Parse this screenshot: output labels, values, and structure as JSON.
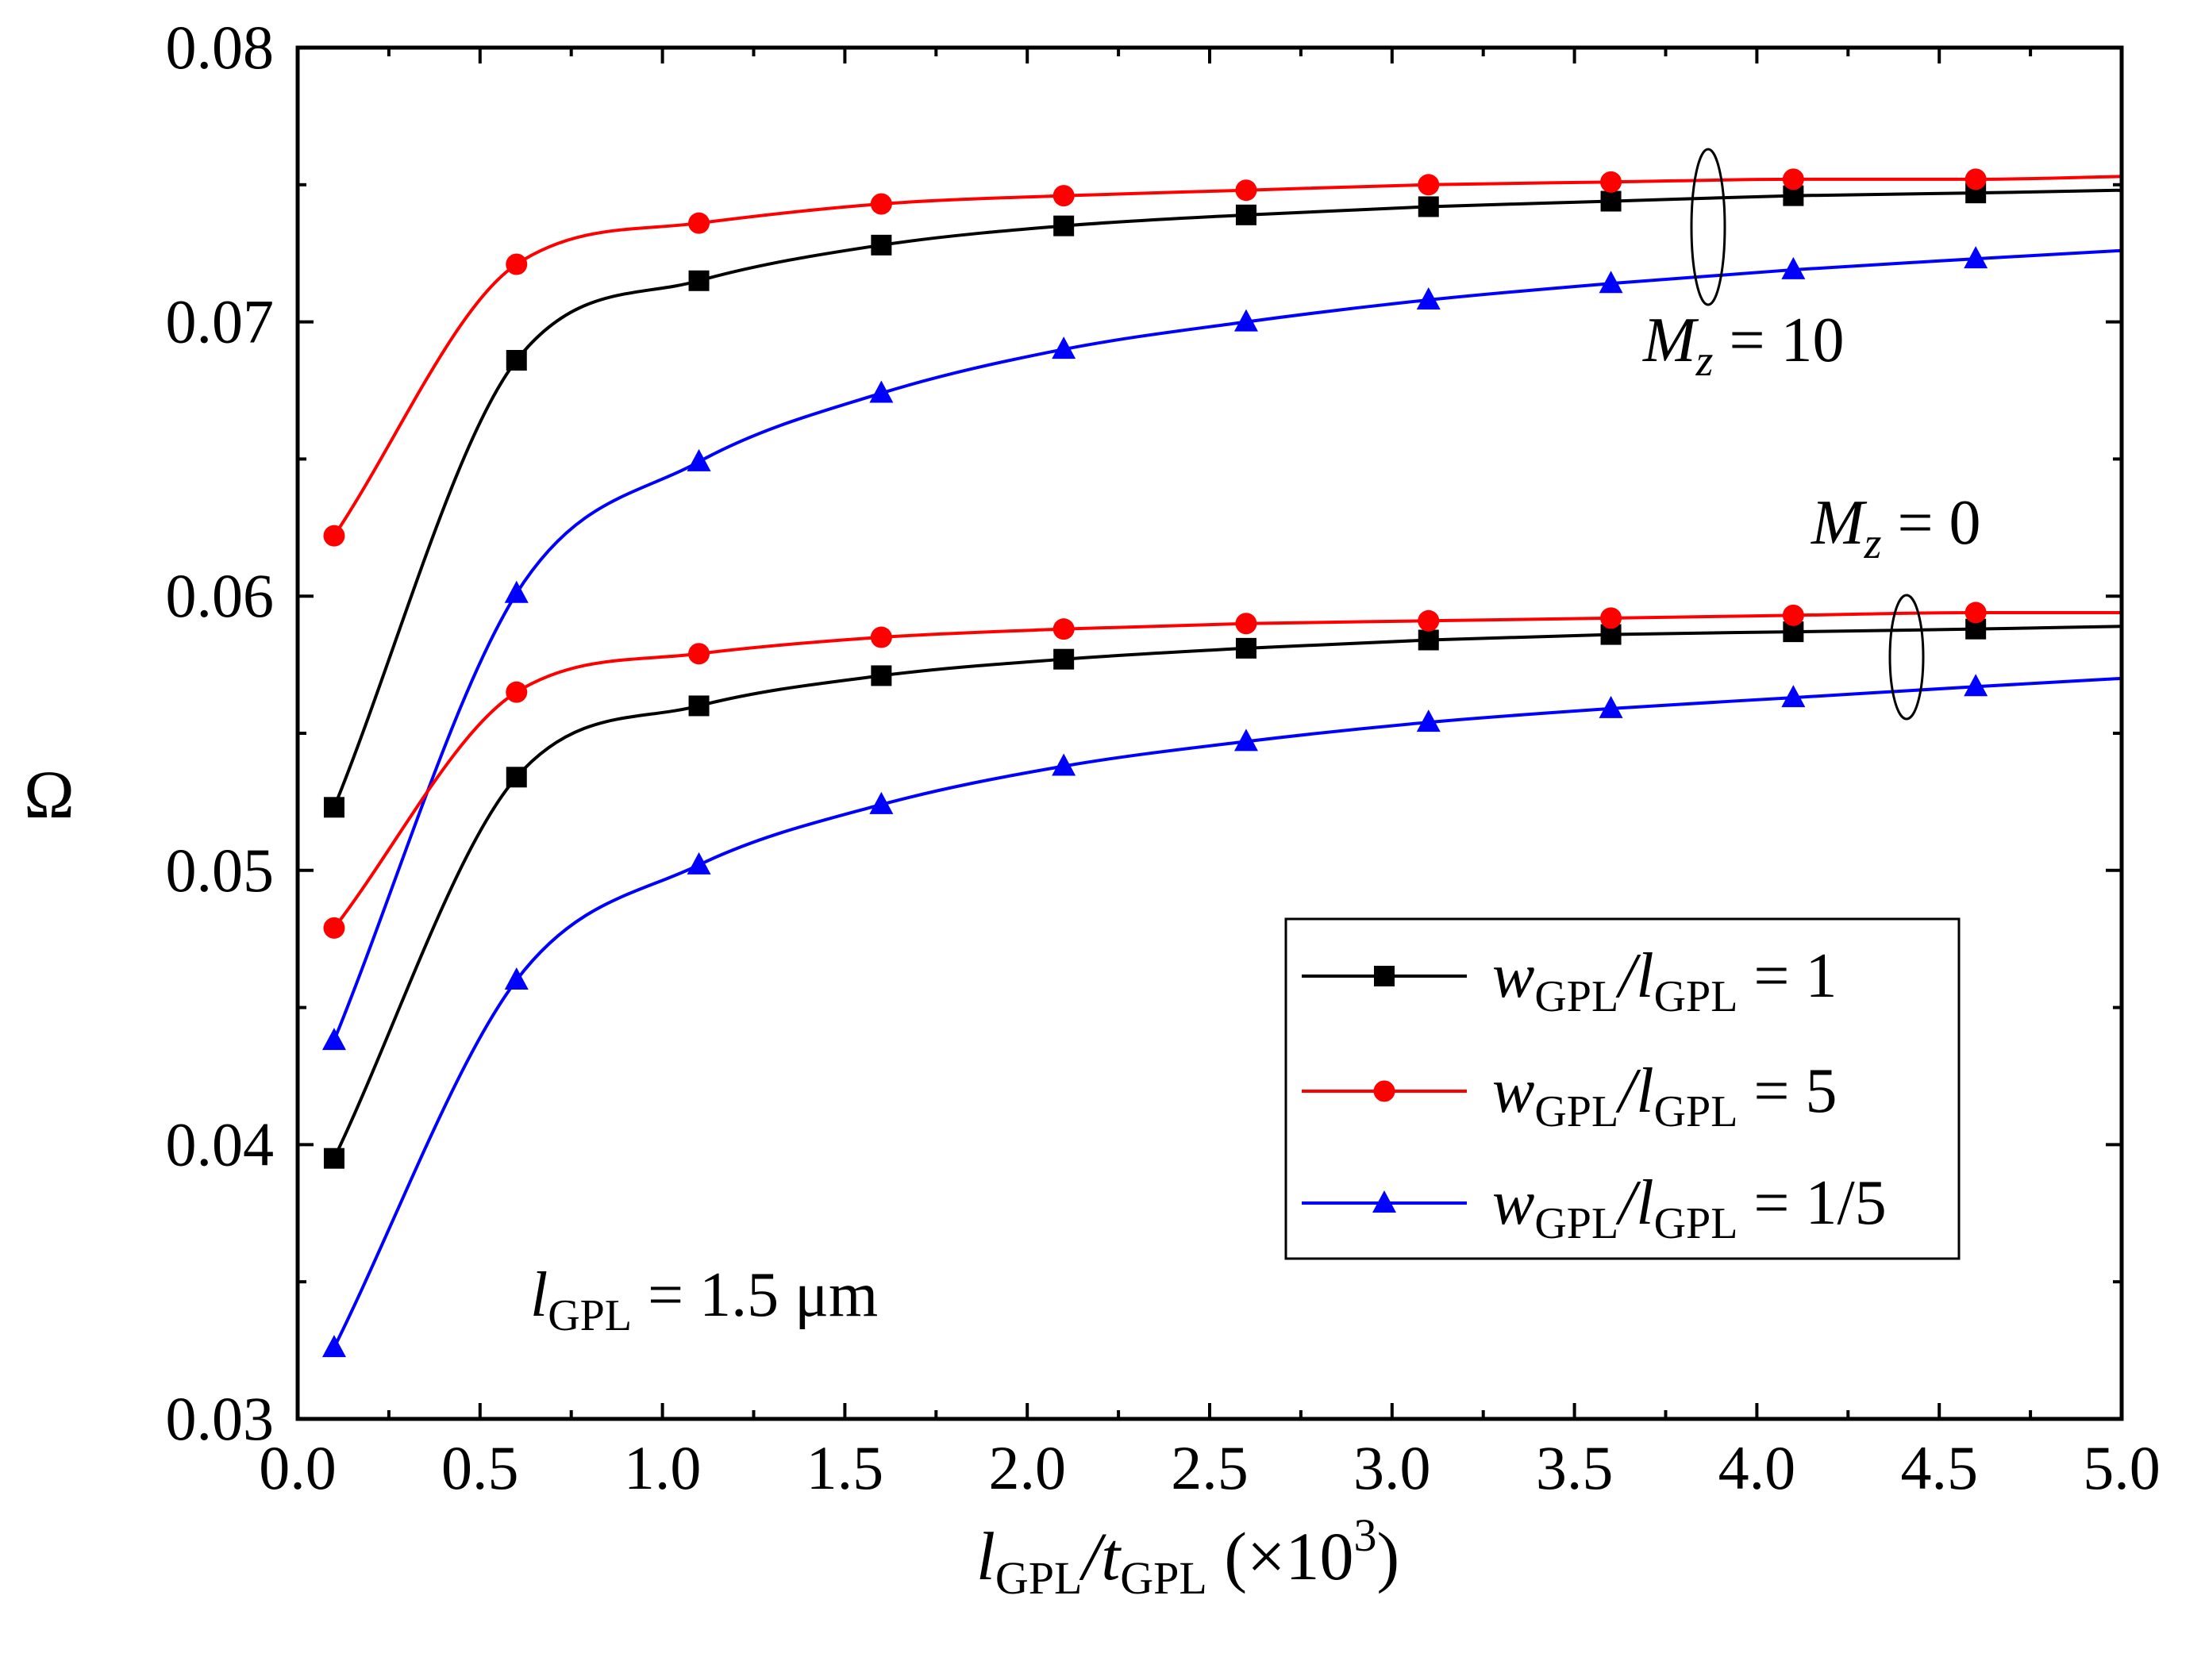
{
  "chart_data": {
    "type": "line",
    "title": "",
    "xlabel": {
      "main": "l",
      "sub1": "GPL",
      "slash": "/t",
      "sub2": "GPL",
      "suffix": " (×10",
      "sup": "3",
      "close": ")"
    },
    "ylabel": "Ω",
    "xlim": [
      0.0,
      5.0
    ],
    "ylim": [
      0.03,
      0.08
    ],
    "xticks": [
      0.0,
      0.5,
      1.0,
      1.5,
      2.0,
      2.5,
      3.0,
      3.5,
      4.0,
      4.5,
      5.0
    ],
    "xtick_labels": [
      "0.0",
      "0.5",
      "1.0",
      "1.5",
      "2.0",
      "2.5",
      "3.0",
      "3.5",
      "4.0",
      "4.5",
      "5.0"
    ],
    "yticks": [
      0.03,
      0.04,
      0.05,
      0.06,
      0.07,
      0.08
    ],
    "ytick_labels": [
      "0.03",
      "0.04",
      "0.05",
      "0.06",
      "0.07",
      "0.08"
    ],
    "x": [
      0.1,
      0.6,
      1.1,
      1.6,
      2.1,
      2.6,
      3.1,
      3.6,
      4.1,
      4.6
    ],
    "series": [
      {
        "name": "w_GPL/l_GPL = 1",
        "group": "Mz = 10",
        "color": "#000000",
        "marker": "square",
        "values": [
          0.0523,
          0.0686,
          0.0715,
          0.0728,
          0.0735,
          0.0739,
          0.0742,
          0.0744,
          0.0746,
          0.0747
        ]
      },
      {
        "name": "w_GPL/l_GPL = 5",
        "group": "Mz = 10",
        "color": "#ff0000",
        "marker": "circle",
        "values": [
          0.0622,
          0.0721,
          0.0736,
          0.0743,
          0.0746,
          0.0748,
          0.075,
          0.0751,
          0.0752,
          0.0752
        ]
      },
      {
        "name": "w_GPL/l_GPL = 1/5",
        "group": "Mz = 10",
        "color": "#0000ff",
        "marker": "triangle",
        "values": [
          0.0438,
          0.0601,
          0.0649,
          0.0674,
          0.069,
          0.07,
          0.0708,
          0.0714,
          0.0719,
          0.0723
        ]
      },
      {
        "name": "w_GPL/l_GPL = 1",
        "group": "Mz = 0",
        "color": "#000000",
        "marker": "square",
        "values": [
          0.0395,
          0.0534,
          0.056,
          0.0571,
          0.0577,
          0.0581,
          0.0584,
          0.0586,
          0.0587,
          0.0588
        ]
      },
      {
        "name": "w_GPL/l_GPL = 5",
        "group": "Mz = 0",
        "color": "#ff0000",
        "marker": "circle",
        "values": [
          0.0479,
          0.0565,
          0.0579,
          0.0585,
          0.0588,
          0.059,
          0.0591,
          0.0592,
          0.0593,
          0.0594
        ]
      },
      {
        "name": "w_GPL/l_GPL = 1/5",
        "group": "Mz = 0",
        "color": "#0000ff",
        "marker": "triangle",
        "values": [
          0.0326,
          0.046,
          0.0502,
          0.0524,
          0.0538,
          0.0547,
          0.0554,
          0.0559,
          0.0563,
          0.0567
        ]
      }
    ],
    "curve_end": {
      "x": 5.0,
      "values": [
        0.0748,
        0.0753,
        0.0726,
        0.0589,
        0.0594,
        0.057
      ]
    },
    "legend": {
      "placement": "lower-right",
      "entries": [
        {
          "w": "w",
          "sub1": "GPL",
          "slash": "/l",
          "sub2": "GPL",
          "rhs": " = 1",
          "color": "#000000",
          "marker": "square"
        },
        {
          "w": "w",
          "sub1": "GPL",
          "slash": "/l",
          "sub2": "GPL",
          "rhs": " = 5",
          "color": "#ff0000",
          "marker": "circle"
        },
        {
          "w": "w",
          "sub1": "GPL",
          "slash": "/l",
          "sub2": "GPL",
          "rhs": " = 1/5",
          "color": "#0000ff",
          "marker": "triangle"
        }
      ]
    },
    "annotations": {
      "mz10": {
        "main": "M",
        "sub": "z",
        "rhs": " = 10"
      },
      "mz0": {
        "main": "M",
        "sub": "z",
        "rhs": " = 0"
      },
      "lgpl": {
        "main": "l",
        "sub": "GPL",
        "rhs": " = 1.5 μm"
      }
    }
  }
}
